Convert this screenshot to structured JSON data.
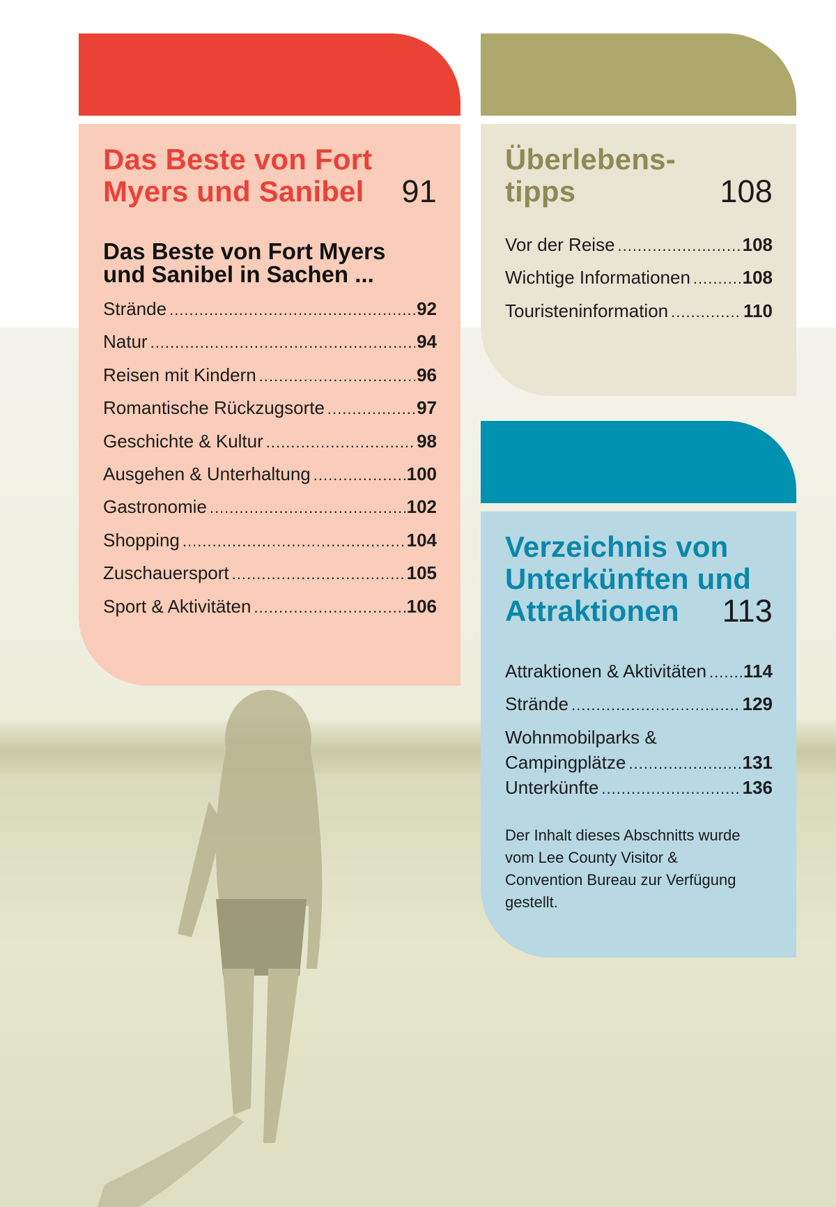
{
  "sections": {
    "best": {
      "title_line1": "Das Beste von Fort",
      "title_line2": "Myers und Sanibel",
      "page": "91",
      "subheading_line1": "Das Beste von Fort Myers",
      "subheading_line2": "und Sanibel in Sachen ...",
      "entries": [
        {
          "label": "Strände",
          "page": "92"
        },
        {
          "label": "Natur",
          "page": "94"
        },
        {
          "label": "Reisen mit Kindern",
          "page": "96"
        },
        {
          "label": "Romantische Rückzugsorte",
          "page": "97"
        },
        {
          "label": "Geschichte & Kultur",
          "page": "98"
        },
        {
          "label": "Ausgehen & Unterhaltung",
          "page": "100"
        },
        {
          "label": "Gastronomie",
          "page": "102"
        },
        {
          "label": "Shopping",
          "page": "104"
        },
        {
          "label": "Zuschauersport",
          "page": "105"
        },
        {
          "label": "Sport & Aktivitäten",
          "page": "106"
        }
      ],
      "color": "#ea4335"
    },
    "survival": {
      "title_line1": "Überlebens-",
      "title_line2": "tipps",
      "page": "108",
      "entries": [
        {
          "label": "Vor der Reise",
          "page": "108"
        },
        {
          "label": "Wichtige Informationen",
          "page": "108"
        },
        {
          "label": "Touristeninformation",
          "page": "110"
        }
      ],
      "color": "#afa86c"
    },
    "directory": {
      "title_line1": "Verzeichnis von",
      "title_line2": "Unterkünften und",
      "title_line3": "Attraktionen",
      "page": "113",
      "entries": [
        {
          "label": "Attraktionen & Aktivitäten",
          "page": "114"
        },
        {
          "label": "Strände",
          "page": "129"
        },
        {
          "label_line1": "Wohnmobilparks &",
          "label_line2": "Campingplätze",
          "page": "131"
        },
        {
          "label": "Unterkünfte",
          "page": "136"
        }
      ],
      "note": "Der Inhalt dieses Abschnitts wurde vom Lee County Visitor & Convention Bureau zur Verfügung gestellt.",
      "color": "#0090b0"
    }
  },
  "background": {
    "description_icon": "beach-walker-photo"
  }
}
